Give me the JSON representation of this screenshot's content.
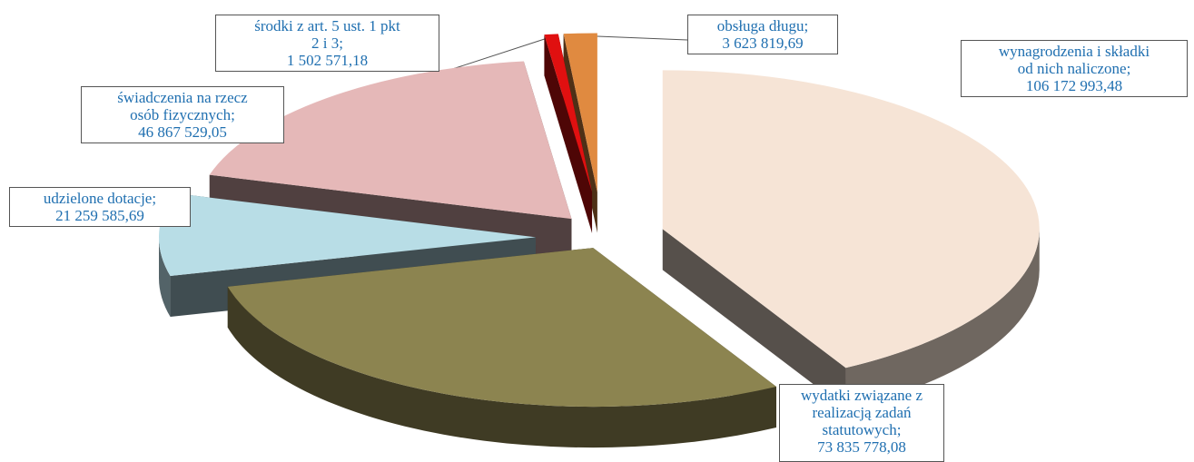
{
  "chart_data": {
    "type": "pie",
    "title": "",
    "slices": [
      {
        "label_lines": [
          "wynagrodzenia i składki",
          "od nich naliczone;",
          "106 172 993,48"
        ],
        "name": "wynagrodzenia i składki od nich naliczone",
        "value": 106172993.48,
        "color": "#f6e4d6"
      },
      {
        "label_lines": [
          "wydatki związane z",
          "realizacją zadań",
          "statutowych;",
          "73 835 778,08"
        ],
        "name": "wydatki związane z realizacją zadań statutowych",
        "value": 73835778.08,
        "color": "#8c8450"
      },
      {
        "label_lines": [
          "udzielone dotacje;",
          "21 259 585,69"
        ],
        "name": "udzielone dotacje",
        "value": 21259585.69,
        "color": "#b8dde6"
      },
      {
        "label_lines": [
          "świadczenia na rzecz",
          "osób fizycznych;",
          "46 867 529,05"
        ],
        "name": "świadczenia na rzecz osób fizycznych",
        "value": 46867529.05,
        "color": "#e5b8b8"
      },
      {
        "label_lines": [
          "środki z art. 5 ust. 1 pkt",
          "2 i 3;",
          "1 502 571,18"
        ],
        "name": "środki z art. 5 ust. 1 pkt 2 i 3",
        "value": 1502571.18,
        "color": "#e01010"
      },
      {
        "label_lines": [
          "obsługa długu;",
          "3 623 819,69"
        ],
        "name": "obsługa długu",
        "value": 3623819.69,
        "color": "#e08a40"
      }
    ]
  }
}
